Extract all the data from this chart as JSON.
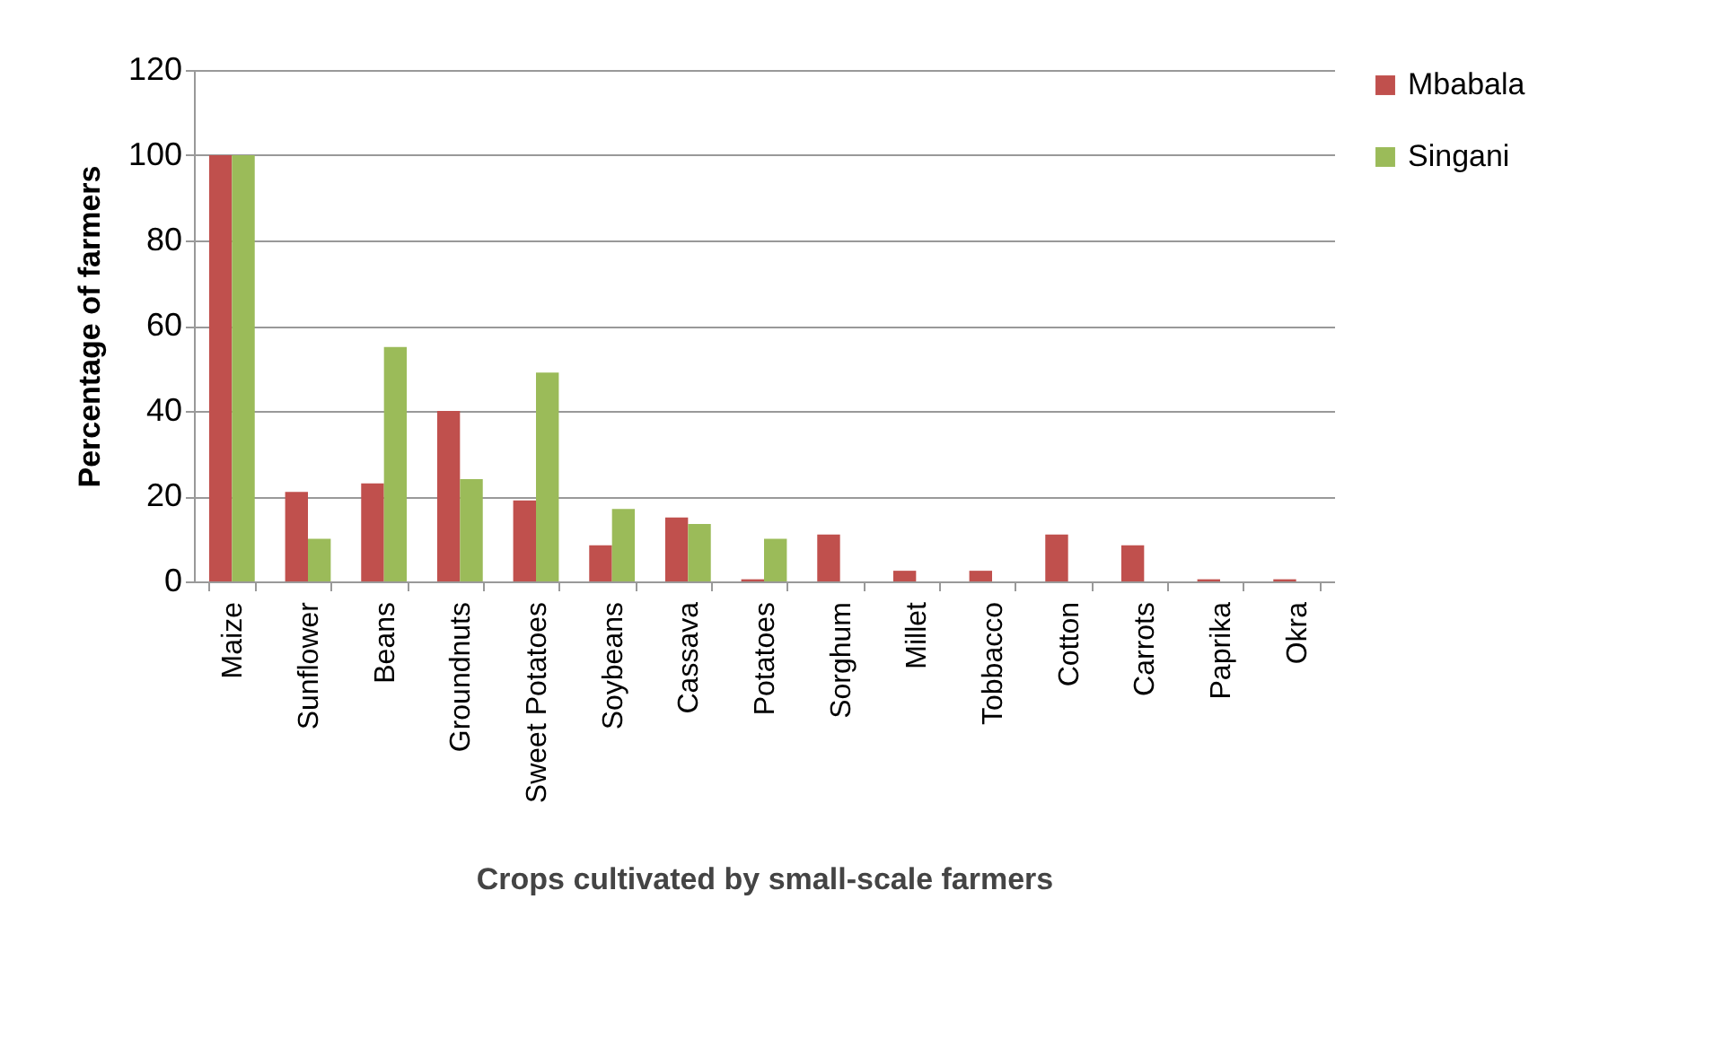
{
  "chart_data": {
    "type": "bar",
    "xlabel": "Crops cultivated by small-scale farmers",
    "ylabel": "Percentage of farmers",
    "categories": [
      "Maize",
      "Sunflower",
      "Beans",
      "Groundnuts",
      "Sweet Potatoes",
      "Soybeans",
      "Cassava",
      "Potatoes",
      "Sorghum",
      "Millet",
      "Tobbacco",
      "Cotton",
      "Carrots",
      "Paprika",
      "Okra"
    ],
    "series": [
      {
        "name": "Mbabala",
        "color": "#c0504d",
        "values": [
          100,
          21,
          23,
          40,
          19,
          8.5,
          15,
          0.5,
          11,
          2.5,
          2.5,
          11,
          8.5,
          0.5,
          0.5
        ]
      },
      {
        "name": "Singani",
        "color": "#9bbb59",
        "values": [
          100,
          10,
          55,
          24,
          49,
          17,
          13.5,
          10,
          0,
          0,
          0,
          0,
          0,
          0,
          0
        ]
      }
    ],
    "ylim": [
      0,
      120
    ],
    "yticks": [
      0,
      20,
      40,
      60,
      80,
      100,
      120
    ],
    "grid": "y",
    "legend": "right"
  }
}
